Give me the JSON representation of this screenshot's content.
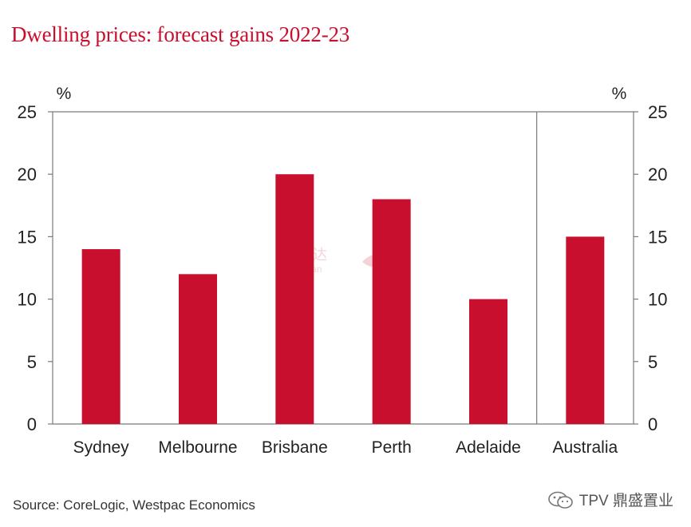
{
  "title": "Dwelling prices: forecast gains 2022-23",
  "source": "Source: CoreLogic, Westpac Economics",
  "brand": "TPV 鼎盛置业",
  "watermark": {
    "cn": "海邦达",
    "en": "Hinabian"
  },
  "colors": {
    "bar": "#c8102e",
    "title": "#c8102e",
    "axis": "#7a7a7a",
    "text": "#222222"
  },
  "chart_data": {
    "type": "bar",
    "title": "Dwelling prices: forecast gains 2022-23",
    "categories": [
      "Sydney",
      "Melbourne",
      "Brisbane",
      "Perth",
      "Adelaide",
      "Australia"
    ],
    "values": [
      14,
      12,
      20,
      18,
      10,
      15
    ],
    "ylabel_left": "%",
    "ylabel_right": "%",
    "ylim": [
      0,
      25
    ],
    "yticks": [
      0,
      5,
      10,
      15,
      20,
      25
    ],
    "grid": false,
    "separator_before": "Australia"
  }
}
